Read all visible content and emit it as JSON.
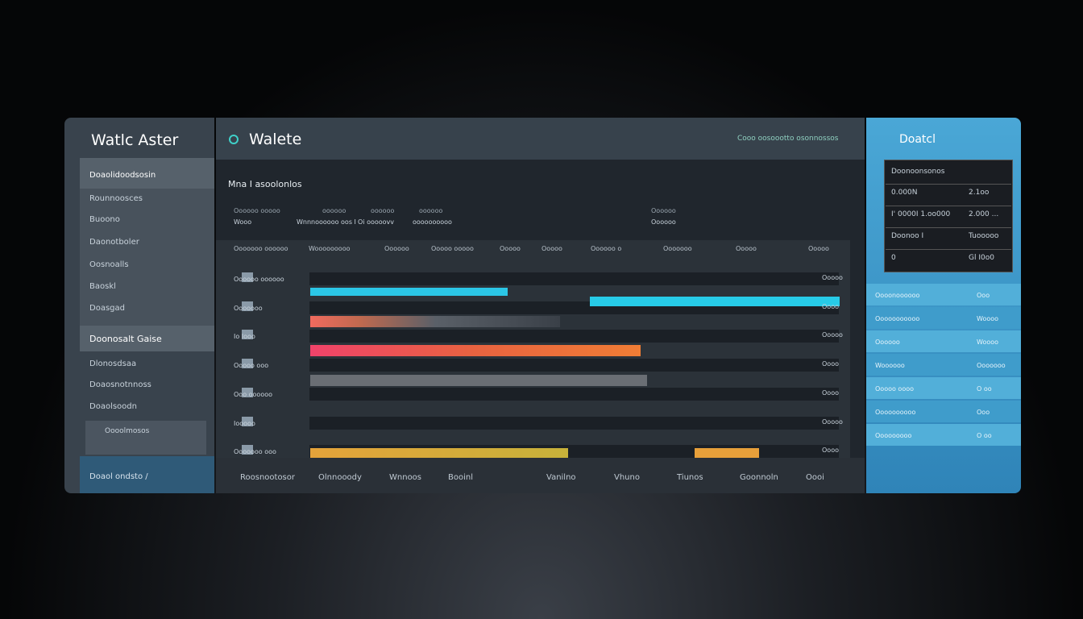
{
  "sidebar": {
    "title": "Watlc Aster",
    "items": [
      "Doaolidoodsosin",
      "Rounnoosces",
      "Buoono",
      "Daonotboler",
      "Oosnoalls",
      "Baoskl",
      "Doasgad"
    ],
    "section": "Doonosalt Gaise",
    "section_items": [
      "Dlonosdsaa",
      "Doaosnotnnoss",
      "Doaolsoodn"
    ],
    "card": "Oooolmosos",
    "footer": "Doaol ondsto /"
  },
  "main": {
    "title": "Walete",
    "header_note": "Cooo oosoootto osonnossos",
    "subtitle": "Mna I asoolonlos",
    "filters_top": [
      "Oooooo ooooo",
      "oooooo",
      "oooooo",
      "oooooo",
      "Oooooo"
    ],
    "filters_bottom": [
      "Wooo",
      "Wnnnoooooo oos I",
      "Oi ooooovv",
      "oooooooooo",
      "Oooooo"
    ],
    "columns": [
      "Ooooooo oooooo",
      "Wooooooooo",
      "Oooooo",
      "Ooooo ooooo",
      "Ooooo",
      "Ooooo",
      "Oooooo o",
      "Ooooooo",
      "Ooooo",
      "Ooooo"
    ],
    "rows": [
      "Oooooo oooooo",
      "Ooooooo",
      "Io Iooo",
      "Ooooo ooo",
      "Ooo oooooo",
      "Iooooo",
      "Ooooooo ooo"
    ],
    "lane_labels": [
      "Ooooo",
      "Oooo",
      "Ooooo",
      "Oooo",
      "Oooo",
      "Ooooo",
      "Oooo"
    ],
    "footer": [
      "Roosnootosor",
      "Olnnooody",
      "Wnnoos",
      "Booinl",
      "Vanilno",
      "Vhuno",
      "Tiunos",
      "Goonnoln",
      "Oooi"
    ]
  },
  "panel": {
    "title": "Doatcl",
    "table_header": "Doonoonsonos",
    "table": [
      [
        "0.000N",
        "2.1oo"
      ],
      [
        "I' 0000I 1.oo000",
        "2.000 ..."
      ],
      [
        "Doonoo I",
        "Tuooooo"
      ],
      [
        "0",
        "Gl I0o0"
      ]
    ],
    "list": [
      [
        "Oooonoooooo",
        "Ooo"
      ],
      [
        "Ooooooooooo",
        "Woooo"
      ],
      [
        "Oooooo",
        "Woooo"
      ],
      [
        "Woooooo",
        "Ooooooo"
      ],
      [
        "Ooooo oooo",
        "O oo"
      ],
      [
        "Oooooooooo",
        "Ooo"
      ],
      [
        "Ooooooooo",
        "O oo"
      ]
    ]
  }
}
